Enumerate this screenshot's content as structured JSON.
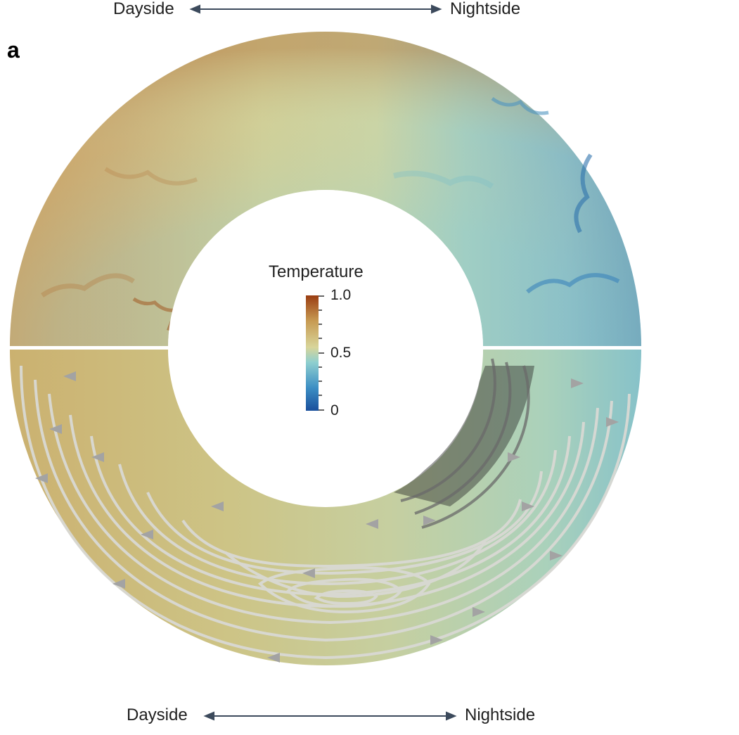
{
  "panel_label": "a",
  "top_axis": {
    "left_label": "Dayside",
    "right_label": "Nightside"
  },
  "bottom_axis": {
    "left_label": "Dayside",
    "right_label": "Nightside"
  },
  "colorbar": {
    "title": "Temperature",
    "tick_labels": [
      "1.0",
      "0.5",
      "0"
    ],
    "range": [
      0,
      1
    ],
    "colormap": [
      "#1a4f9c",
      "#3d8fc4",
      "#8fcfcf",
      "#d8d59a",
      "#c79a52",
      "#9a3d12"
    ]
  },
  "panels": {
    "top_half": "temperature field",
    "bottom_half": "mean temperature with streamlines"
  },
  "colors": {
    "dayside_hot": "#c9a56a",
    "mid": "#cdd4a0",
    "nightside_cool": "#7fbcc7",
    "streamline": "#d6d6d2",
    "arrow": "#9a9a9a"
  }
}
